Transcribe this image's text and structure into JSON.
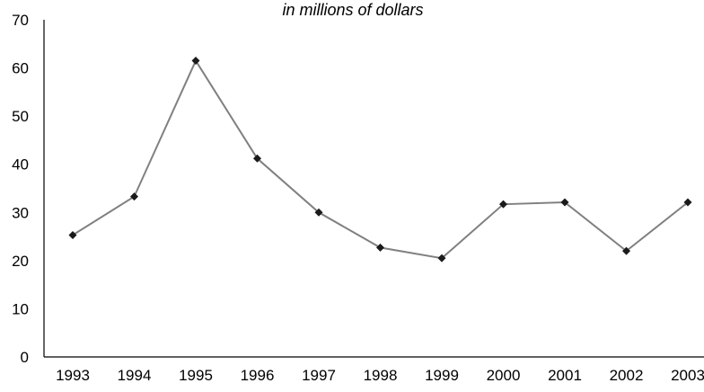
{
  "chart_data": {
    "type": "line",
    "title": "",
    "subtitle": "in millions of dollars",
    "xlabel": "",
    "ylabel": "",
    "categories": [
      "1993",
      "1994",
      "1995",
      "1996",
      "1997",
      "1998",
      "1999",
      "2000",
      "2001",
      "2002",
      "2003"
    ],
    "series": [
      {
        "values": [
          25.3,
          33.3,
          61.5,
          41.2,
          30.0,
          22.7,
          20.5,
          31.7,
          32.1,
          22.0,
          32.1
        ]
      }
    ],
    "ylim": [
      0,
      70
    ],
    "yticks": [
      0,
      10,
      20,
      30,
      40,
      50,
      60,
      70
    ],
    "grid": false,
    "legend": "none",
    "colors": {
      "line": "#808080",
      "marker": "#1a1a1a",
      "axis": "#000000",
      "text": "#000000"
    },
    "marker": "diamond"
  }
}
